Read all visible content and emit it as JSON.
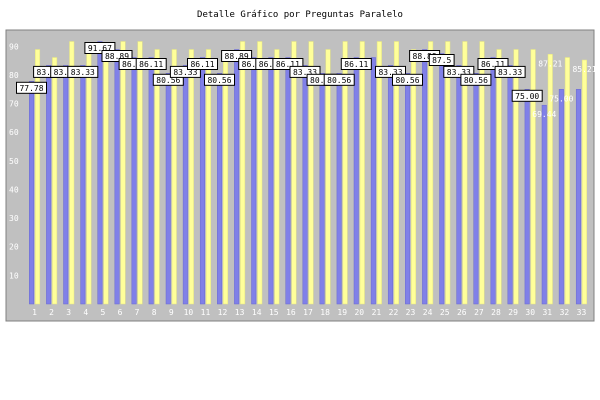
{
  "chart_data": {
    "type": "bar",
    "title": "Detalle Gráfico por Preguntas Paralelo",
    "xlabel": "",
    "ylabel": "",
    "ylim": [
      0,
      95
    ],
    "yticks": [
      10,
      20,
      30,
      40,
      50,
      60,
      70,
      80,
      90
    ],
    "grid": false,
    "legend": "none",
    "colors": {
      "background": "#c0c0c0",
      "series_blue": "#8080e8",
      "series_yellow": "#ffff9a",
      "frame": "#808080"
    },
    "categories": [
      "1",
      "2",
      "3",
      "4",
      "5",
      "6",
      "7",
      "8",
      "9",
      "10",
      "11",
      "12",
      "13",
      "14",
      "15",
      "16",
      "17",
      "18",
      "19",
      "20",
      "21",
      "22",
      "23",
      "24",
      "25",
      "26",
      "27",
      "28",
      "29",
      "30",
      "31",
      "32",
      "33"
    ],
    "series": [
      {
        "values": [
          77.78,
          83.33,
          83.33,
          83.33,
          91.67,
          88.89,
          86.11,
          86.11,
          80.56,
          83.33,
          86.11,
          80.56,
          88.89,
          86.11,
          86.11,
          86.11,
          83.33,
          80.56,
          80.56,
          86.11,
          86.11,
          83.33,
          80.56,
          88.89,
          87.5,
          83.33,
          80.56,
          86.11,
          83.33,
          75.0,
          69.44,
          75.0,
          75.0
        ]
      },
      {
        "values": [
          88.89,
          86.11,
          91.67,
          88.89,
          88.89,
          91.67,
          91.67,
          88.89,
          88.89,
          88.89,
          88.89,
          86.11,
          91.67,
          91.67,
          88.89,
          91.67,
          91.67,
          88.89,
          91.67,
          91.67,
          91.67,
          91.67,
          88.89,
          91.67,
          91.67,
          91.67,
          91.67,
          88.89,
          88.89,
          88.89,
          87.21,
          86.11,
          85.21
        ]
      }
    ],
    "data_labels": [
      {
        "text": "77.78",
        "index": 0,
        "series": 0
      },
      {
        "text": "83.33",
        "index": 1,
        "series": 0
      },
      {
        "text": "83.33",
        "index": 2,
        "series": 0
      },
      {
        "text": "83.33",
        "index": 3,
        "series": 0
      },
      {
        "text": "91.67",
        "index": 4,
        "series": 0
      },
      {
        "text": "88.89",
        "index": 5,
        "series": 0
      },
      {
        "text": "86.11",
        "index": 6,
        "series": 0
      },
      {
        "text": "86.11",
        "index": 7,
        "series": 0
      },
      {
        "text": "80.56",
        "index": 8,
        "series": 0
      },
      {
        "text": "83.33",
        "index": 9,
        "series": 0
      },
      {
        "text": "86.11",
        "index": 10,
        "series": 0
      },
      {
        "text": "80.56",
        "index": 11,
        "series": 0
      },
      {
        "text": "88.89",
        "index": 12,
        "series": 0
      },
      {
        "text": "86.11",
        "index": 13,
        "series": 0
      },
      {
        "text": "86.11",
        "index": 14,
        "series": 0
      },
      {
        "text": "86.11",
        "index": 15,
        "series": 0
      },
      {
        "text": "83.33",
        "index": 16,
        "series": 0
      },
      {
        "text": "80.56",
        "index": 17,
        "series": 0
      },
      {
        "text": "80.56",
        "index": 18,
        "series": 0
      },
      {
        "text": "86.11",
        "index": 19,
        "series": 0
      },
      {
        "text": "83.33",
        "index": 21,
        "series": 0
      },
      {
        "text": "80.56",
        "index": 22,
        "series": 0
      },
      {
        "text": "88.89",
        "index": 23,
        "series": 0
      },
      {
        "text": "87.5",
        "index": 24,
        "series": 0
      },
      {
        "text": "83.33",
        "index": 25,
        "series": 0
      },
      {
        "text": "80.56",
        "index": 26,
        "series": 0
      },
      {
        "text": "86.11",
        "index": 27,
        "series": 0
      },
      {
        "text": "83.33",
        "index": 28,
        "series": 0
      },
      {
        "text": "75.00",
        "index": 29,
        "series": 0
      },
      {
        "text": "69.44",
        "index": 30,
        "series": 0,
        "style": "faint"
      },
      {
        "text": "75.00",
        "index": 31,
        "series": 0,
        "style": "faint"
      },
      {
        "text": "87.21",
        "index": 30,
        "series": 1,
        "style": "faint"
      },
      {
        "text": "85.21",
        "index": 32,
        "series": 1,
        "style": "faint"
      }
    ]
  }
}
